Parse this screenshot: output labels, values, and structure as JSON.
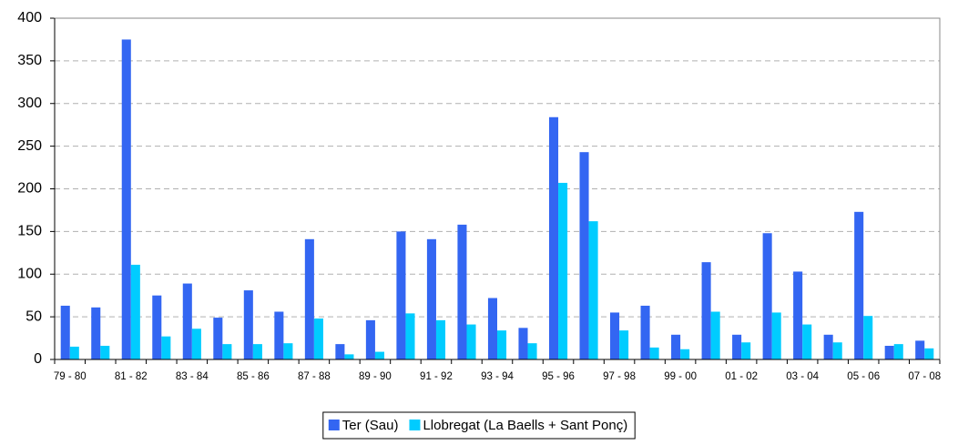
{
  "chart_data": {
    "type": "bar",
    "categories": [
      "79 - 80",
      null,
      "81 - 82",
      null,
      "83 - 84",
      null,
      "85 - 86",
      null,
      "87 - 88",
      null,
      "89 - 90",
      null,
      "91 - 92",
      null,
      "93 - 94",
      null,
      "95 - 96",
      null,
      "97 - 98",
      null,
      "99 - 00",
      null,
      "01 - 02",
      null,
      "03 - 04",
      null,
      "05 - 06",
      null,
      "07 - 08"
    ],
    "series": [
      {
        "name": "Ter (Sau)",
        "color": "#3366f2",
        "values": [
          63,
          61,
          375,
          75,
          89,
          49,
          81,
          56,
          141,
          18,
          46,
          150,
          141,
          158,
          72,
          37,
          284,
          243,
          55,
          63,
          29,
          114,
          29,
          148,
          103,
          29,
          173,
          16,
          22
        ]
      },
      {
        "name": "Llobregat (La Baells + Sant Ponç)",
        "color": "#00ccff",
        "values": [
          15,
          16,
          111,
          27,
          36,
          18,
          18,
          19,
          48,
          6,
          9,
          54,
          46,
          41,
          34,
          19,
          207,
          162,
          34,
          14,
          12,
          56,
          20,
          55,
          41,
          20,
          51,
          18,
          13
        ]
      }
    ],
    "ylim": [
      0,
      400
    ],
    "yticks": [
      0,
      50,
      100,
      150,
      200,
      250,
      300,
      350,
      400
    ],
    "grid": true,
    "legend": "bottom"
  }
}
